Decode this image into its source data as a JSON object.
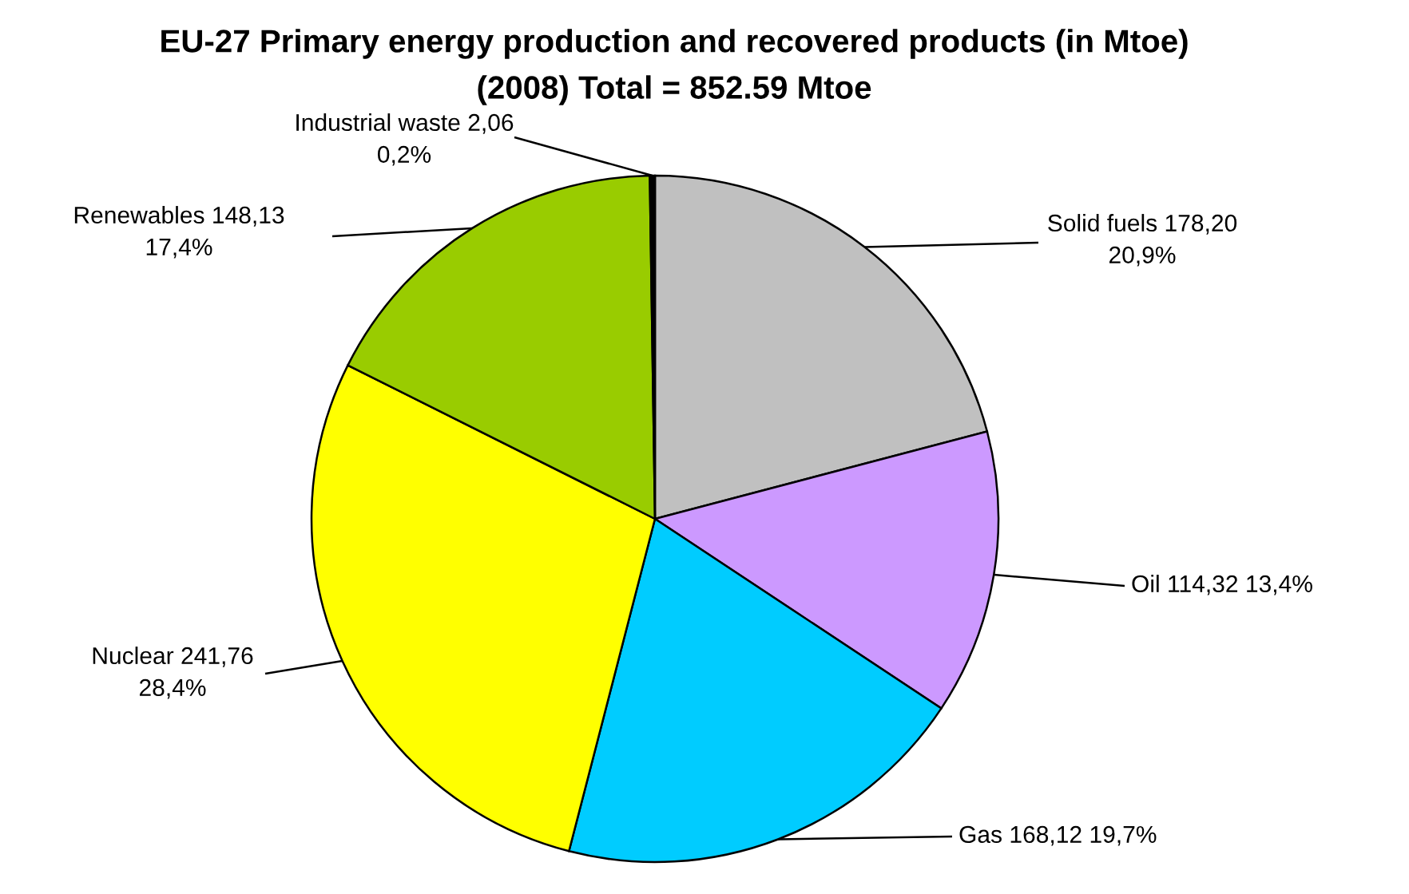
{
  "chart_data": {
    "type": "pie",
    "title": "EU-27 Primary energy production and recovered products (in Mtoe)\n(2008) Total = 852.59 Mtoe",
    "categories": [
      "Solid fuels",
      "Oil",
      "Gas",
      "Nuclear",
      "Renewables",
      "Industrial waste"
    ],
    "values": [
      178.2,
      114.32,
      168.12,
      241.76,
      148.13,
      2.06
    ],
    "colors": [
      "#c0c0c0",
      "#cc99ff",
      "#00ccff",
      "#ffff00",
      "#99cc00",
      "#000000"
    ],
    "value_labels": [
      "178,20\n20,9%",
      "114,32 13,4%",
      "168,12 19,7%",
      "241,76\n28,4%",
      "148,13\n17,4%",
      "2,06\n0,2%"
    ]
  }
}
